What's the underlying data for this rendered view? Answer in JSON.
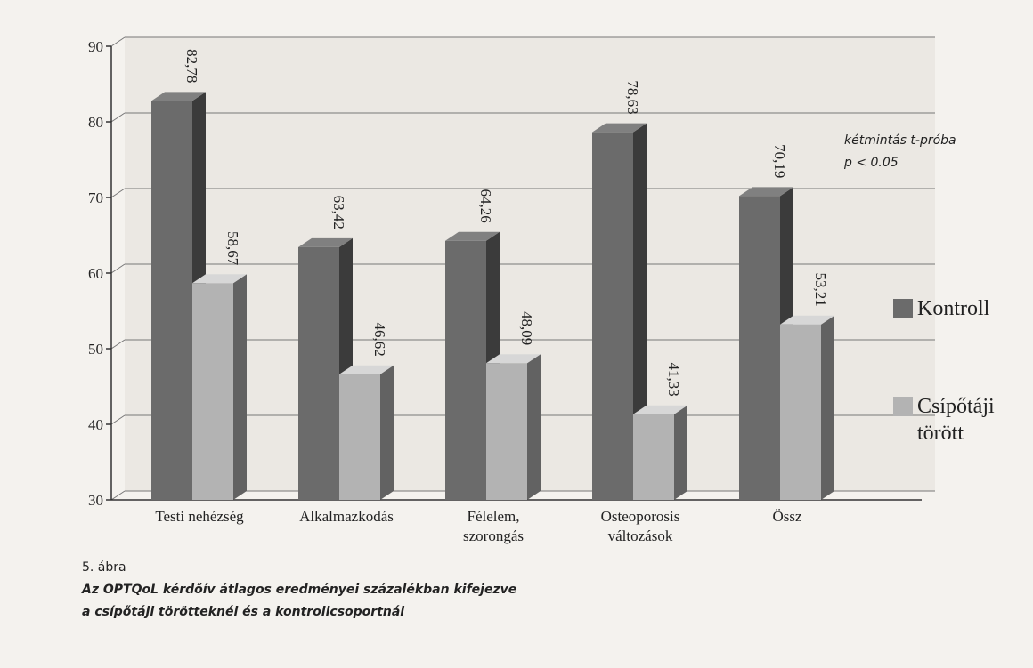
{
  "chart_data": {
    "type": "bar3d",
    "categories": [
      "Testi nehézség",
      "Alkalmazkodás",
      "Félelem, szorongás",
      "Osteoporosis változások",
      "Össz"
    ],
    "series": [
      {
        "name": "Kontroll",
        "color": "#6b6b6b",
        "values": [
          82.78,
          63.42,
          64.26,
          78.63,
          70.19
        ],
        "value_labels": [
          "82,78",
          "63,42",
          "64,26",
          "78,63",
          "70,19"
        ]
      },
      {
        "name": "Csípőtáji törött",
        "color": "#b3b3b3",
        "values": [
          58.67,
          46.62,
          48.09,
          41.33,
          53.21
        ],
        "value_labels": [
          "58,67",
          "46,62",
          "48,09",
          "41,33",
          "53,21"
        ]
      }
    ],
    "ylim": [
      30,
      90
    ],
    "yticks": [
      30,
      40,
      50,
      60,
      70,
      80,
      90
    ],
    "grid": true,
    "annotations": [
      "kétmintás t-próba",
      "p < 0.05"
    ],
    "caption": {
      "number": "5. ábra",
      "lines": [
        "Az OPTQoL kérdőív átlagos eredményei százalékban kifejezve",
        "a csípőtáji törötteknél és a kontrollcsoportnál"
      ]
    }
  }
}
